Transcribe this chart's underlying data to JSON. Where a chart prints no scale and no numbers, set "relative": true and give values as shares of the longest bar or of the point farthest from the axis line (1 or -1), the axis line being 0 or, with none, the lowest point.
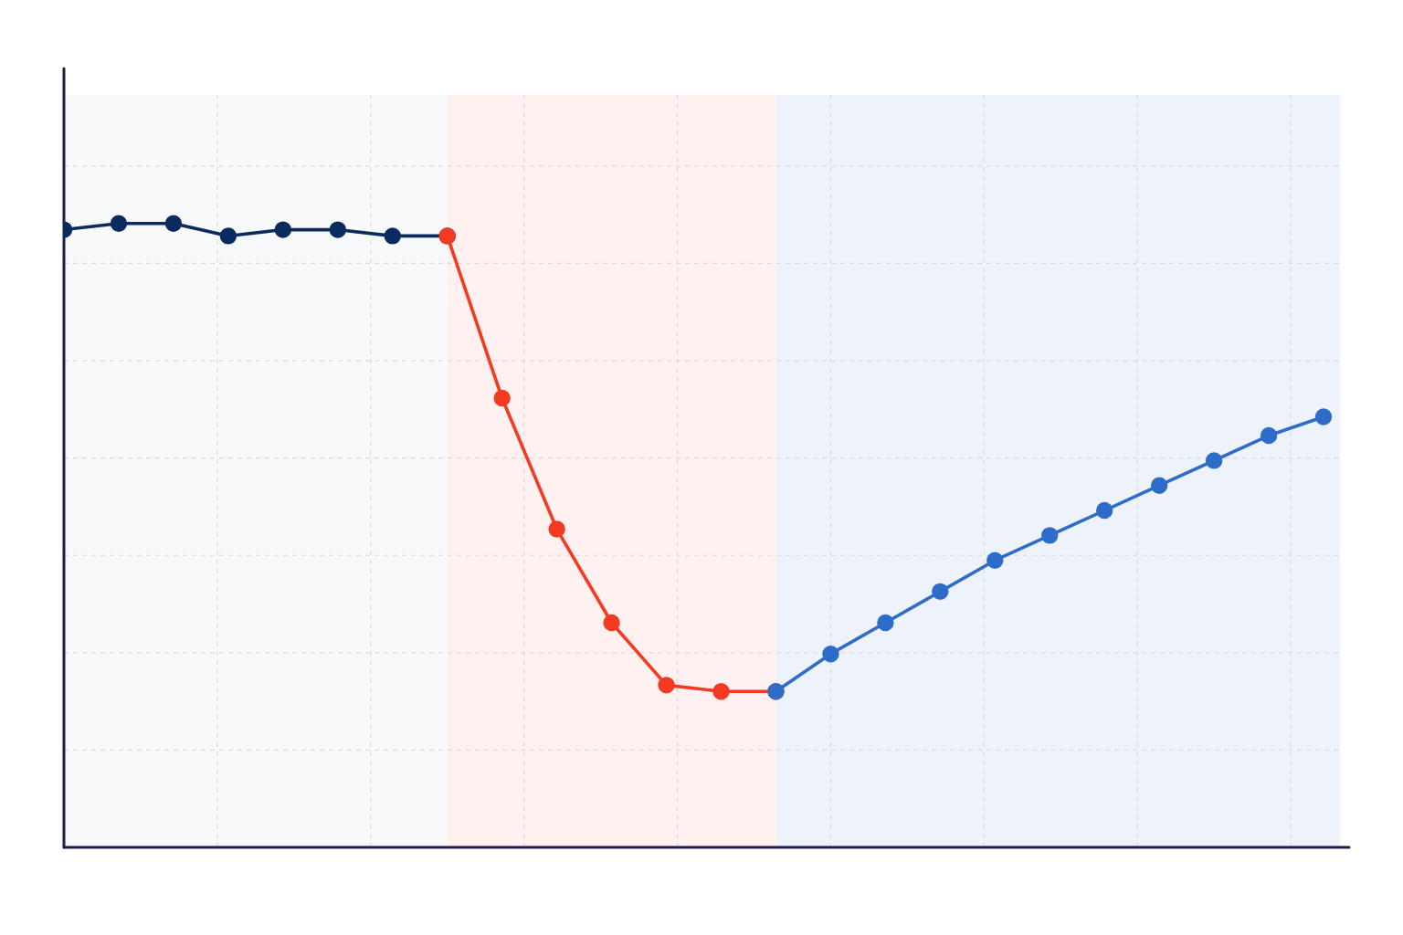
{
  "chart_data": {
    "type": "line",
    "relative": true,
    "categories": [
      null,
      null,
      null,
      null,
      null,
      null,
      null,
      null,
      null,
      null,
      null,
      null,
      null,
      null,
      null,
      null,
      null,
      null,
      null,
      null,
      null,
      null,
      null,
      null
    ],
    "series": [
      {
        "color": "#0b2a5e",
        "values": [
          0.99,
          1,
          1,
          0.98,
          0.99,
          0.99,
          0.98,
          0.98,
          null,
          null,
          null,
          null,
          null,
          null,
          null,
          null,
          null,
          null,
          null,
          null,
          null,
          null,
          null,
          null
        ]
      },
      {
        "color": "#f43a22",
        "values": [
          null,
          null,
          null,
          null,
          null,
          null,
          null,
          0.98,
          0.72,
          0.51,
          0.36,
          0.26,
          0.25,
          0.25,
          null,
          null,
          null,
          null,
          null,
          null,
          null,
          null,
          null,
          null
        ]
      },
      {
        "color": "#2e6cc9",
        "values": [
          null,
          null,
          null,
          null,
          null,
          null,
          null,
          null,
          null,
          null,
          null,
          null,
          null,
          0.25,
          0.31,
          0.36,
          0.41,
          0.46,
          0.5,
          0.54,
          0.58,
          0.62,
          0.66,
          0.69
        ]
      }
    ],
    "grid": true,
    "marker": "circle",
    "line_style": "solid"
  }
}
